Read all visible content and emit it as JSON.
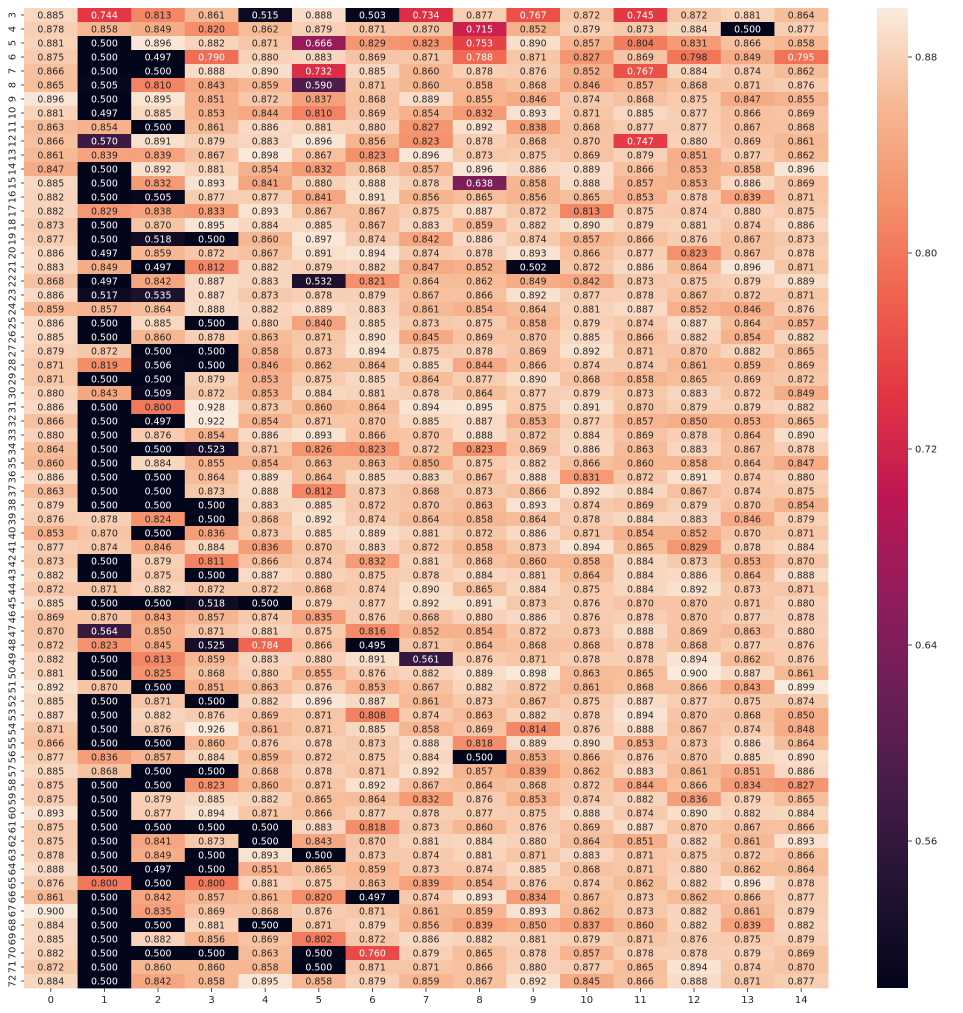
{
  "chart_data": {
    "type": "heatmap",
    "title": "",
    "xlabel": "",
    "ylabel": "",
    "x_categories": [
      "0",
      "1",
      "2",
      "3",
      "4",
      "5",
      "6",
      "7",
      "8",
      "9",
      "10",
      "11",
      "12",
      "13",
      "14"
    ],
    "y_categories": [
      "3",
      "4",
      "5",
      "6",
      "7",
      "8",
      "9",
      "10",
      "11",
      "12",
      "13",
      "14",
      "15",
      "16",
      "17",
      "18",
      "19",
      "20",
      "21",
      "22",
      "23",
      "24",
      "25",
      "26",
      "27",
      "28",
      "29",
      "30",
      "31",
      "32",
      "33",
      "34",
      "35",
      "36",
      "37",
      "38",
      "39",
      "40",
      "41",
      "42",
      "43",
      "44",
      "45",
      "46",
      "47",
      "48",
      "49",
      "50",
      "51",
      "52",
      "53",
      "54",
      "55",
      "56",
      "57",
      "58",
      "59",
      "60",
      "61",
      "62",
      "63",
      "64",
      "65",
      "66",
      "67",
      "68",
      "69",
      "70",
      "71",
      "72"
    ],
    "values": [
      [
        0.885,
        0.744,
        0.813,
        0.861,
        0.515,
        0.888,
        0.503,
        0.734,
        0.877,
        0.767,
        0.872,
        0.745,
        0.872,
        0.881,
        0.864
      ],
      [
        0.878,
        0.858,
        0.849,
        0.82,
        0.862,
        0.879,
        0.871,
        0.87,
        0.715,
        0.852,
        0.879,
        0.873,
        0.884,
        0.5,
        0.877
      ],
      [
        0.881,
        0.5,
        0.896,
        0.882,
        0.871,
        0.666,
        0.829,
        0.823,
        0.753,
        0.89,
        0.857,
        0.804,
        0.831,
        0.866,
        0.858
      ],
      [
        0.875,
        0.5,
        0.497,
        0.79,
        0.88,
        0.883,
        0.869,
        0.871,
        0.788,
        0.871,
        0.827,
        0.869,
        0.798,
        0.849,
        0.795
      ],
      [
        0.866,
        0.5,
        0.5,
        0.888,
        0.89,
        0.732,
        0.885,
        0.86,
        0.878,
        0.876,
        0.852,
        0.767,
        0.884,
        0.874,
        0.862
      ],
      [
        0.865,
        0.505,
        0.81,
        0.843,
        0.859,
        0.59,
        0.871,
        0.86,
        0.858,
        0.868,
        0.846,
        0.857,
        0.868,
        0.871,
        0.876
      ],
      [
        0.896,
        0.5,
        0.895,
        0.851,
        0.872,
        0.837,
        0.868,
        0.889,
        0.855,
        0.846,
        0.874,
        0.868,
        0.875,
        0.847,
        0.855
      ],
      [
        0.881,
        0.497,
        0.885,
        0.853,
        0.844,
        0.81,
        0.869,
        0.854,
        0.832,
        0.893,
        0.871,
        0.885,
        0.877,
        0.866,
        0.869
      ],
      [
        0.863,
        0.854,
        0.5,
        0.861,
        0.886,
        0.881,
        0.88,
        0.827,
        0.892,
        0.838,
        0.868,
        0.877,
        0.877,
        0.867,
        0.868
      ],
      [
        0.866,
        0.57,
        0.891,
        0.879,
        0.883,
        0.896,
        0.856,
        0.823,
        0.878,
        0.868,
        0.87,
        0.747,
        0.88,
        0.869,
        0.861
      ],
      [
        0.861,
        0.839,
        0.839,
        0.867,
        0.898,
        0.867,
        0.823,
        0.896,
        0.873,
        0.875,
        0.869,
        0.879,
        0.851,
        0.877,
        0.862
      ],
      [
        0.847,
        0.5,
        0.892,
        0.881,
        0.854,
        0.832,
        0.868,
        0.857,
        0.896,
        0.886,
        0.889,
        0.866,
        0.853,
        0.858,
        0.896
      ],
      [
        0.885,
        0.5,
        0.832,
        0.893,
        0.841,
        0.88,
        0.888,
        0.878,
        0.638,
        0.858,
        0.888,
        0.857,
        0.853,
        0.886,
        0.869
      ],
      [
        0.882,
        0.5,
        0.505,
        0.877,
        0.877,
        0.841,
        0.891,
        0.856,
        0.865,
        0.856,
        0.865,
        0.853,
        0.878,
        0.839,
        0.871
      ],
      [
        0.882,
        0.829,
        0.838,
        0.833,
        0.893,
        0.867,
        0.867,
        0.875,
        0.887,
        0.872,
        0.813,
        0.875,
        0.874,
        0.88,
        0.875
      ],
      [
        0.873,
        0.5,
        0.87,
        0.895,
        0.884,
        0.885,
        0.867,
        0.883,
        0.859,
        0.882,
        0.89,
        0.879,
        0.881,
        0.874,
        0.886
      ],
      [
        0.877,
        0.5,
        0.518,
        0.5,
        0.86,
        0.897,
        0.874,
        0.842,
        0.886,
        0.874,
        0.857,
        0.866,
        0.876,
        0.867,
        0.873
      ],
      [
        0.886,
        0.497,
        0.859,
        0.872,
        0.867,
        0.891,
        0.894,
        0.874,
        0.878,
        0.893,
        0.866,
        0.877,
        0.823,
        0.867,
        0.878
      ],
      [
        0.883,
        0.849,
        0.497,
        0.812,
        0.882,
        0.879,
        0.882,
        0.847,
        0.852,
        0.502,
        0.872,
        0.886,
        0.864,
        0.896,
        0.871
      ],
      [
        0.868,
        0.497,
        0.842,
        0.887,
        0.883,
        0.532,
        0.821,
        0.864,
        0.862,
        0.849,
        0.842,
        0.873,
        0.875,
        0.879,
        0.889
      ],
      [
        0.886,
        0.517,
        0.535,
        0.887,
        0.873,
        0.878,
        0.879,
        0.867,
        0.866,
        0.892,
        0.877,
        0.878,
        0.867,
        0.872,
        0.871
      ],
      [
        0.859,
        0.857,
        0.864,
        0.888,
        0.882,
        0.889,
        0.883,
        0.861,
        0.854,
        0.864,
        0.881,
        0.887,
        0.852,
        0.846,
        0.876
      ],
      [
        0.886,
        0.5,
        0.885,
        0.5,
        0.88,
        0.84,
        0.885,
        0.873,
        0.875,
        0.858,
        0.879,
        0.874,
        0.887,
        0.864,
        0.857
      ],
      [
        0.885,
        0.5,
        0.86,
        0.878,
        0.863,
        0.871,
        0.89,
        0.845,
        0.869,
        0.87,
        0.885,
        0.866,
        0.882,
        0.854,
        0.882
      ],
      [
        0.879,
        0.872,
        0.5,
        0.5,
        0.858,
        0.873,
        0.894,
        0.875,
        0.878,
        0.869,
        0.892,
        0.871,
        0.87,
        0.882,
        0.865
      ],
      [
        0.871,
        0.819,
        0.506,
        0.5,
        0.846,
        0.862,
        0.864,
        0.885,
        0.844,
        0.866,
        0.874,
        0.874,
        0.861,
        0.859,
        0.869
      ],
      [
        0.871,
        0.5,
        0.5,
        0.879,
        0.853,
        0.875,
        0.885,
        0.864,
        0.877,
        0.89,
        0.868,
        0.858,
        0.865,
        0.869,
        0.872
      ],
      [
        0.88,
        0.843,
        0.509,
        0.872,
        0.853,
        0.884,
        0.881,
        0.878,
        0.864,
        0.877,
        0.879,
        0.873,
        0.883,
        0.872,
        0.849
      ],
      [
        0.886,
        0.5,
        0.8,
        0.928,
        0.873,
        0.86,
        0.864,
        0.894,
        0.895,
        0.875,
        0.891,
        0.87,
        0.879,
        0.879,
        0.882
      ],
      [
        0.866,
        0.5,
        0.497,
        0.922,
        0.854,
        0.871,
        0.87,
        0.885,
        0.887,
        0.853,
        0.877,
        0.857,
        0.85,
        0.853,
        0.865
      ],
      [
        0.88,
        0.5,
        0.876,
        0.854,
        0.886,
        0.893,
        0.866,
        0.87,
        0.888,
        0.872,
        0.884,
        0.869,
        0.878,
        0.864,
        0.89
      ],
      [
        0.864,
        0.5,
        0.5,
        0.523,
        0.871,
        0.826,
        0.823,
        0.872,
        0.823,
        0.869,
        0.886,
        0.863,
        0.883,
        0.867,
        0.878
      ],
      [
        0.86,
        0.5,
        0.884,
        0.855,
        0.854,
        0.863,
        0.863,
        0.85,
        0.875,
        0.882,
        0.866,
        0.86,
        0.858,
        0.864,
        0.847
      ],
      [
        0.886,
        0.5,
        0.5,
        0.864,
        0.889,
        0.864,
        0.885,
        0.883,
        0.867,
        0.888,
        0.831,
        0.872,
        0.891,
        0.874,
        0.88
      ],
      [
        0.863,
        0.5,
        0.5,
        0.873,
        0.888,
        0.812,
        0.873,
        0.868,
        0.873,
        0.866,
        0.892,
        0.884,
        0.867,
        0.874,
        0.875
      ],
      [
        0.879,
        0.5,
        0.5,
        0.5,
        0.883,
        0.885,
        0.872,
        0.87,
        0.863,
        0.893,
        0.874,
        0.869,
        0.879,
        0.87,
        0.854
      ],
      [
        0.876,
        0.878,
        0.824,
        0.5,
        0.868,
        0.892,
        0.874,
        0.864,
        0.858,
        0.864,
        0.878,
        0.884,
        0.883,
        0.846,
        0.879
      ],
      [
        0.853,
        0.87,
        0.5,
        0.836,
        0.873,
        0.885,
        0.889,
        0.881,
        0.872,
        0.886,
        0.871,
        0.854,
        0.852,
        0.87,
        0.871
      ],
      [
        0.877,
        0.874,
        0.846,
        0.884,
        0.836,
        0.87,
        0.883,
        0.872,
        0.858,
        0.873,
        0.894,
        0.865,
        0.829,
        0.878,
        0.884
      ],
      [
        0.873,
        0.5,
        0.879,
        0.811,
        0.866,
        0.874,
        0.832,
        0.881,
        0.868,
        0.86,
        0.858,
        0.884,
        0.873,
        0.853,
        0.87
      ],
      [
        0.882,
        0.5,
        0.875,
        0.5,
        0.887,
        0.88,
        0.875,
        0.878,
        0.884,
        0.881,
        0.864,
        0.884,
        0.886,
        0.864,
        0.888
      ],
      [
        0.872,
        0.871,
        0.882,
        0.872,
        0.872,
        0.868,
        0.874,
        0.89,
        0.865,
        0.884,
        0.875,
        0.884,
        0.892,
        0.873,
        0.871
      ],
      [
        0.885,
        0.5,
        0.5,
        0.518,
        0.5,
        0.879,
        0.877,
        0.892,
        0.891,
        0.873,
        0.876,
        0.87,
        0.87,
        0.871,
        0.88
      ],
      [
        0.869,
        0.87,
        0.843,
        0.857,
        0.874,
        0.835,
        0.876,
        0.868,
        0.88,
        0.886,
        0.876,
        0.878,
        0.87,
        0.877,
        0.878
      ],
      [
        0.87,
        0.564,
        0.85,
        0.871,
        0.881,
        0.875,
        0.816,
        0.852,
        0.854,
        0.872,
        0.873,
        0.888,
        0.869,
        0.863,
        0.88
      ],
      [
        0.872,
        0.823,
        0.845,
        0.525,
        0.784,
        0.866,
        0.495,
        0.871,
        0.864,
        0.868,
        0.868,
        0.878,
        0.868,
        0.877,
        0.876
      ],
      [
        0.882,
        0.5,
        0.813,
        0.859,
        0.883,
        0.88,
        0.891,
        0.561,
        0.876,
        0.871,
        0.878,
        0.878,
        0.894,
        0.862,
        0.876
      ],
      [
        0.881,
        0.5,
        0.825,
        0.868,
        0.88,
        0.855,
        0.876,
        0.882,
        0.889,
        0.898,
        0.863,
        0.865,
        0.9,
        0.887,
        0.861
      ],
      [
        0.892,
        0.87,
        0.5,
        0.851,
        0.863,
        0.876,
        0.853,
        0.867,
        0.882,
        0.872,
        0.861,
        0.868,
        0.866,
        0.843,
        0.899
      ],
      [
        0.885,
        0.5,
        0.871,
        0.5,
        0.882,
        0.896,
        0.887,
        0.861,
        0.873,
        0.867,
        0.875,
        0.887,
        0.877,
        0.875,
        0.874
      ],
      [
        0.887,
        0.5,
        0.882,
        0.876,
        0.869,
        0.871,
        0.808,
        0.874,
        0.863,
        0.882,
        0.878,
        0.894,
        0.87,
        0.868,
        0.85
      ],
      [
        0.871,
        0.5,
        0.876,
        0.926,
        0.861,
        0.871,
        0.885,
        0.858,
        0.869,
        0.814,
        0.876,
        0.888,
        0.867,
        0.874,
        0.848
      ],
      [
        0.866,
        0.5,
        0.5,
        0.86,
        0.876,
        0.878,
        0.873,
        0.888,
        0.818,
        0.889,
        0.89,
        0.853,
        0.873,
        0.886,
        0.864
      ],
      [
        0.877,
        0.836,
        0.857,
        0.884,
        0.859,
        0.872,
        0.875,
        0.884,
        0.5,
        0.853,
        0.866,
        0.876,
        0.87,
        0.885,
        0.89
      ],
      [
        0.885,
        0.868,
        0.5,
        0.5,
        0.868,
        0.878,
        0.871,
        0.892,
        0.857,
        0.839,
        0.862,
        0.883,
        0.861,
        0.851,
        0.886
      ],
      [
        0.875,
        0.5,
        0.5,
        0.823,
        0.86,
        0.871,
        0.892,
        0.867,
        0.864,
        0.868,
        0.872,
        0.844,
        0.866,
        0.834,
        0.827
      ],
      [
        0.875,
        0.5,
        0.879,
        0.885,
        0.882,
        0.865,
        0.864,
        0.832,
        0.876,
        0.853,
        0.874,
        0.882,
        0.836,
        0.879,
        0.865
      ],
      [
        0.893,
        0.5,
        0.877,
        0.894,
        0.871,
        0.866,
        0.877,
        0.878,
        0.877,
        0.875,
        0.888,
        0.874,
        0.89,
        0.882,
        0.884
      ],
      [
        0.875,
        0.5,
        0.5,
        0.5,
        0.5,
        0.883,
        0.818,
        0.873,
        0.86,
        0.876,
        0.869,
        0.887,
        0.87,
        0.867,
        0.866
      ],
      [
        0.875,
        0.5,
        0.841,
        0.873,
        0.5,
        0.843,
        0.87,
        0.881,
        0.884,
        0.88,
        0.864,
        0.851,
        0.882,
        0.861,
        0.893
      ],
      [
        0.878,
        0.5,
        0.849,
        0.5,
        0.893,
        0.5,
        0.873,
        0.874,
        0.881,
        0.871,
        0.883,
        0.871,
        0.875,
        0.872,
        0.866
      ],
      [
        0.888,
        0.5,
        0.497,
        0.5,
        0.851,
        0.865,
        0.859,
        0.873,
        0.874,
        0.885,
        0.868,
        0.871,
        0.88,
        0.862,
        0.864
      ],
      [
        0.876,
        0.8,
        0.5,
        0.8,
        0.881,
        0.875,
        0.863,
        0.839,
        0.854,
        0.876,
        0.874,
        0.862,
        0.882,
        0.896,
        0.878
      ],
      [
        0.861,
        0.5,
        0.842,
        0.857,
        0.861,
        0.82,
        0.497,
        0.874,
        0.893,
        0.834,
        0.867,
        0.873,
        0.862,
        0.866,
        0.877
      ],
      [
        0.9,
        0.5,
        0.835,
        0.869,
        0.868,
        0.876,
        0.871,
        0.861,
        0.859,
        0.893,
        0.862,
        0.873,
        0.882,
        0.861,
        0.879
      ],
      [
        0.884,
        0.5,
        0.5,
        0.881,
        0.5,
        0.871,
        0.879,
        0.856,
        0.839,
        0.85,
        0.837,
        0.86,
        0.882,
        0.839,
        0.882
      ],
      [
        0.885,
        0.5,
        0.882,
        0.856,
        0.869,
        0.802,
        0.872,
        0.886,
        0.882,
        0.881,
        0.879,
        0.871,
        0.876,
        0.875,
        0.879
      ],
      [
        0.882,
        0.5,
        0.5,
        0.5,
        0.863,
        0.5,
        0.76,
        0.879,
        0.865,
        0.878,
        0.857,
        0.878,
        0.878,
        0.879,
        0.869
      ],
      [
        0.872,
        0.5,
        0.86,
        0.86,
        0.858,
        0.5,
        0.871,
        0.871,
        0.866,
        0.88,
        0.877,
        0.865,
        0.894,
        0.874,
        0.87
      ],
      [
        0.884,
        0.5,
        0.842,
        0.858,
        0.895,
        0.858,
        0.879,
        0.859,
        0.867,
        0.892,
        0.845,
        0.866,
        0.888,
        0.871,
        0.877
      ]
    ],
    "vmin": 0.5,
    "vmax": 0.9,
    "colormap": "rocket",
    "colorbar": {
      "ticks": [
        0.56,
        0.64,
        0.72,
        0.8,
        0.88
      ],
      "tick_labels": [
        "0.56",
        "0.64",
        "0.72",
        "0.80",
        "0.88"
      ],
      "placement": "right"
    },
    "grid": false,
    "legend": "none"
  }
}
